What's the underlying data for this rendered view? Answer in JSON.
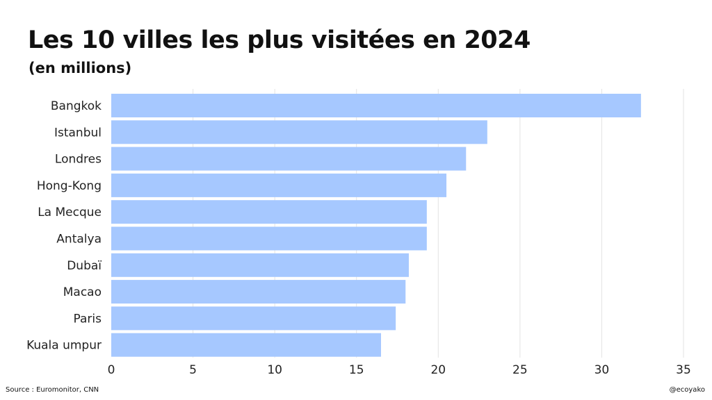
{
  "title": "Les 10 villes les plus visitées en 2024",
  "subtitle": "(en millions)",
  "footer": {
    "source": "Source : Euromonitor, CNN",
    "handle": "@ecoyako"
  },
  "colors": {
    "bar": "#a6c8ff",
    "grid": "#e3e3e3",
    "text": "#222222"
  },
  "chart_data": {
    "type": "bar",
    "orientation": "horizontal",
    "categories": [
      "Bangkok",
      "Istanbul",
      "Londres",
      "Hong-Kong",
      "La Mecque",
      "Antalya",
      "Dubaï",
      "Macao",
      "Paris",
      "Kuala umpur"
    ],
    "values": [
      32.4,
      23.0,
      21.7,
      20.5,
      19.3,
      19.3,
      18.2,
      18.0,
      17.4,
      16.5
    ],
    "xlim": [
      0,
      35
    ],
    "xticks": [
      0,
      5,
      10,
      15,
      20,
      25,
      30,
      35
    ],
    "grid": true
  }
}
